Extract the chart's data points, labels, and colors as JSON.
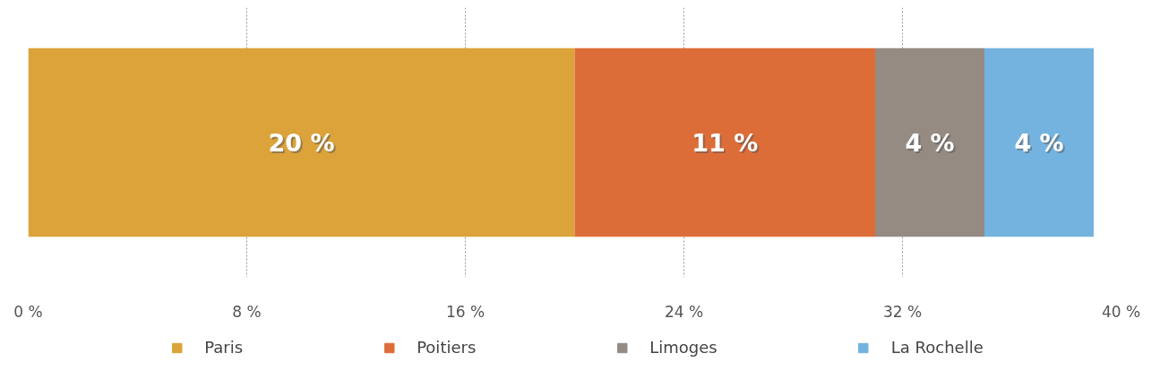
{
  "chart_data": {
    "type": "bar",
    "orientation": "horizontal",
    "stacked": true,
    "categories": [
      null
    ],
    "series": [
      {
        "name": "Paris",
        "color": "#dba339",
        "values": [
          20
        ],
        "value_labels": [
          "20 %"
        ]
      },
      {
        "name": "Poitiers",
        "color": "#dd6d38",
        "values": [
          11
        ],
        "value_labels": [
          "11 %"
        ]
      },
      {
        "name": "Limoges",
        "color": "#958b82",
        "values": [
          4
        ],
        "value_labels": [
          "4 %"
        ]
      },
      {
        "name": "La Rochelle",
        "color": "#74b3df",
        "values": [
          4
        ],
        "value_labels": [
          "4 %"
        ]
      }
    ],
    "xlim": [
      0,
      40
    ],
    "xticks": [
      {
        "value": 0,
        "label": "0 %"
      },
      {
        "value": 8,
        "label": "8 %"
      },
      {
        "value": 16,
        "label": "16 %"
      },
      {
        "value": 24,
        "label": "24 %"
      },
      {
        "value": 32,
        "label": "32 %"
      },
      {
        "value": 40,
        "label": "40 %"
      }
    ],
    "grid": "x",
    "legend": "bottom"
  }
}
